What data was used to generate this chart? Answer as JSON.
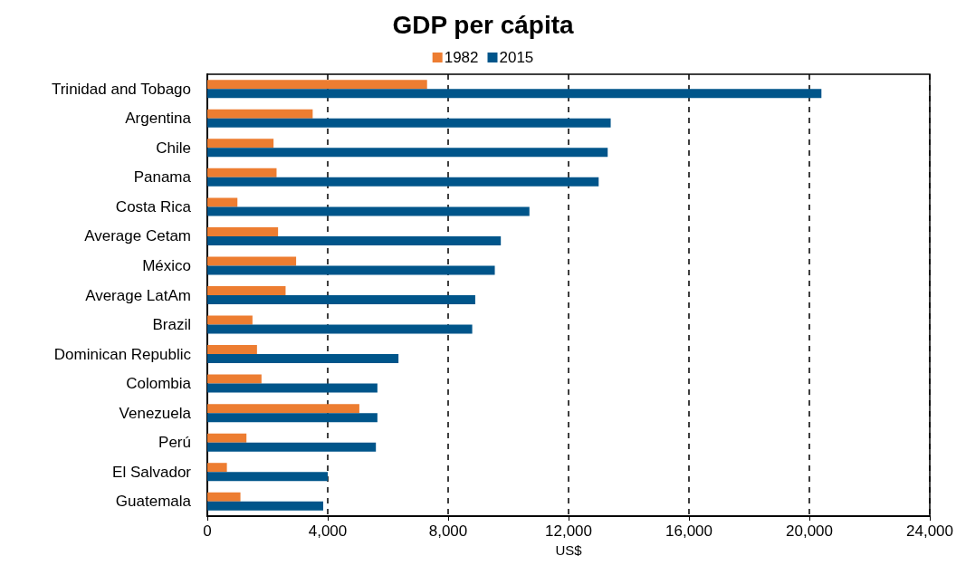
{
  "chart_data": {
    "type": "bar",
    "orientation": "horizontal",
    "title": "GDP per cápita",
    "xlabel": "US$",
    "categories": [
      "Trinidad and Tobago",
      "Argentina",
      "Chile",
      "Panama",
      "Costa Rica",
      "Average Cetam",
      "México",
      "Average LatAm",
      "Brazil",
      "Dominican Republic",
      "Colombia",
      "Venezuela",
      "Perú",
      "El Salvador",
      "Guatemala"
    ],
    "series": [
      {
        "name": "1982",
        "color": "#ed7d31",
        "values": [
          7300,
          3500,
          2200,
          2300,
          1000,
          2350,
          2950,
          2600,
          1500,
          1650,
          1800,
          5050,
          1300,
          650,
          1100
        ]
      },
      {
        "name": "2015",
        "color": "#00558a",
        "values": [
          20400,
          13400,
          13300,
          13000,
          10700,
          9750,
          9550,
          8900,
          8800,
          6350,
          5650,
          5650,
          5600,
          4000,
          3850
        ]
      }
    ],
    "xlim": [
      0,
      24000
    ],
    "xticks": [
      0,
      {
        "value": 4000,
        "label": "4,000"
      },
      {
        "value": 8000,
        "label": "8,000"
      },
      {
        "value": 12000,
        "label": "12,000"
      },
      {
        "value": 16000,
        "label": "16,000"
      },
      {
        "value": 20000,
        "label": "20,000"
      },
      {
        "value": 24000,
        "label": "24,000"
      }
    ],
    "grid": "x",
    "legend": "top"
  }
}
